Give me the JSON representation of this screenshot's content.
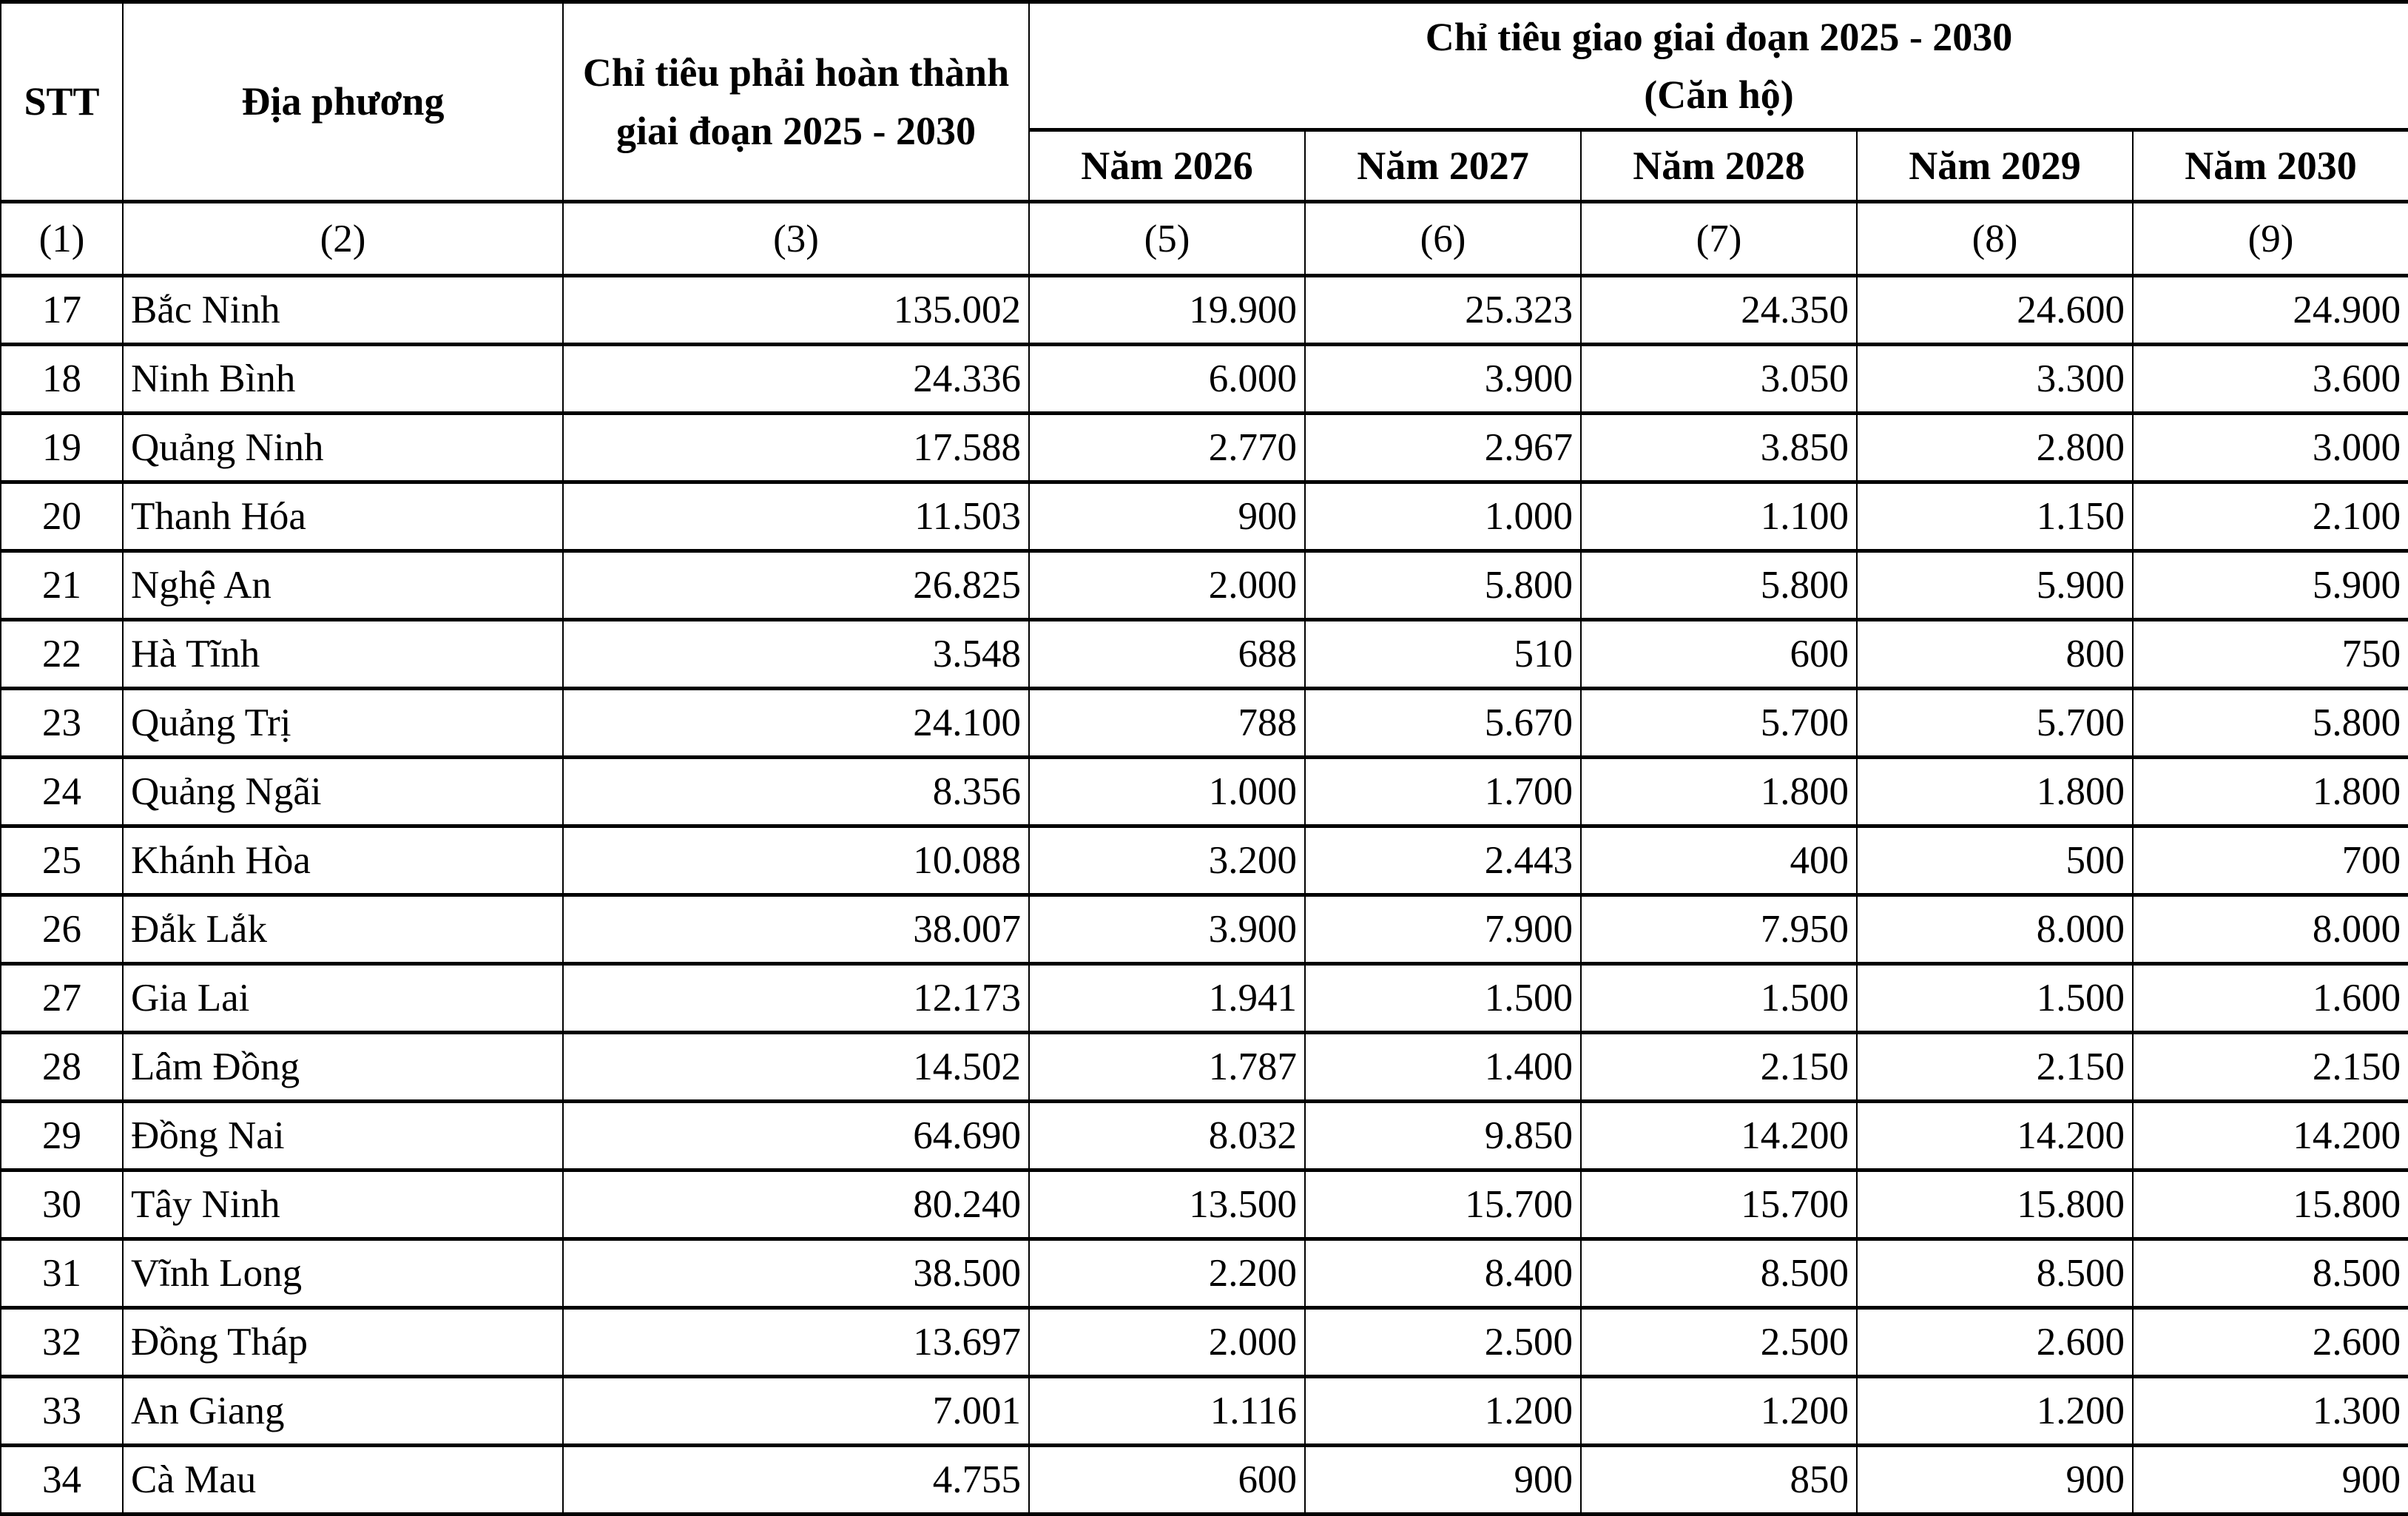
{
  "table": {
    "headers": {
      "stt": "STT",
      "locality": "Địa phương",
      "required_target": "Chỉ tiêu phải hoàn thành giai đoạn 2025 - 2030",
      "assigned_target_line1": "Chỉ tiêu giao giai đoạn 2025 - 2030",
      "assigned_target_line2": "(Căn hộ)",
      "years": [
        "Năm 2026",
        "Năm 2027",
        "Năm 2028",
        "Năm 2029",
        "Năm 2030"
      ]
    },
    "column_numbers": [
      "(1)",
      "(2)",
      "(3)",
      "(5)",
      "(6)",
      "(7)",
      "(8)",
      "(9)"
    ],
    "rows": [
      [
        "17",
        "Bắc Ninh",
        "135.002",
        "19.900",
        "25.323",
        "24.350",
        "24.600",
        "24.900"
      ],
      [
        "18",
        "Ninh Bình",
        "24.336",
        "6.000",
        "3.900",
        "3.050",
        "3.300",
        "3.600"
      ],
      [
        "19",
        "Quảng Ninh",
        "17.588",
        "2.770",
        "2.967",
        "3.850",
        "2.800",
        "3.000"
      ],
      [
        "20",
        "Thanh Hóa",
        "11.503",
        "900",
        "1.000",
        "1.100",
        "1.150",
        "2.100"
      ],
      [
        "21",
        "Nghệ An",
        "26.825",
        "2.000",
        "5.800",
        "5.800",
        "5.900",
        "5.900"
      ],
      [
        "22",
        "Hà Tĩnh",
        "3.548",
        "688",
        "510",
        "600",
        "800",
        "750"
      ],
      [
        "23",
        "Quảng Trị",
        "24.100",
        "788",
        "5.670",
        "5.700",
        "5.700",
        "5.800"
      ],
      [
        "24",
        "Quảng Ngãi",
        "8.356",
        "1.000",
        "1.700",
        "1.800",
        "1.800",
        "1.800"
      ],
      [
        "25",
        "Khánh Hòa",
        "10.088",
        "3.200",
        "2.443",
        "400",
        "500",
        "700"
      ],
      [
        "26",
        "Đắk Lắk",
        "38.007",
        "3.900",
        "7.900",
        "7.950",
        "8.000",
        "8.000"
      ],
      [
        "27",
        "Gia Lai",
        "12.173",
        "1.941",
        "1.500",
        "1.500",
        "1.500",
        "1.600"
      ],
      [
        "28",
        "Lâm Đồng",
        "14.502",
        "1.787",
        "1.400",
        "2.150",
        "2.150",
        "2.150"
      ],
      [
        "29",
        "Đồng Nai",
        "64.690",
        "8.032",
        "9.850",
        "14.200",
        "14.200",
        "14.200"
      ],
      [
        "30",
        "Tây Ninh",
        "80.240",
        "13.500",
        "15.700",
        "15.700",
        "15.800",
        "15.800"
      ],
      [
        "31",
        "Vĩnh Long",
        "38.500",
        "2.200",
        "8.400",
        "8.500",
        "8.500",
        "8.500"
      ],
      [
        "32",
        "Đồng Tháp",
        "13.697",
        "2.000",
        "2.500",
        "2.500",
        "2.600",
        "2.600"
      ],
      [
        "33",
        "An Giang",
        "7.001",
        "1.116",
        "1.200",
        "1.200",
        "1.200",
        "1.300"
      ],
      [
        "34",
        "Cà Mau",
        "4.755",
        "600",
        "900",
        "850",
        "900",
        "900"
      ]
    ]
  }
}
